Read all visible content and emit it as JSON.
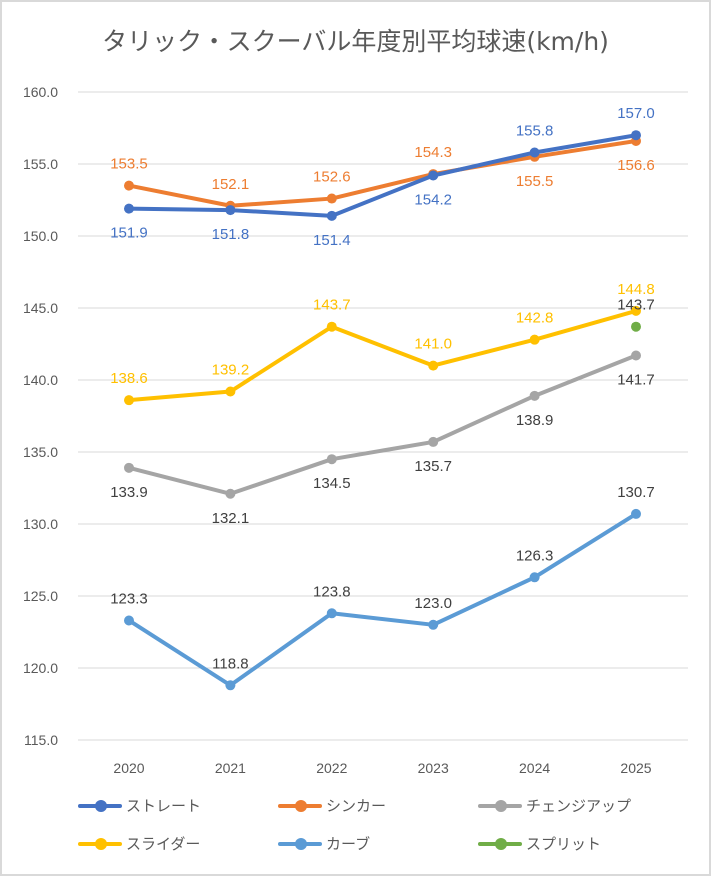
{
  "chart_data": {
    "type": "line",
    "title": "タリック・スクーバル年度別平均球速(km/h)",
    "categories": [
      "2020",
      "2021",
      "2022",
      "2023",
      "2024",
      "2025"
    ],
    "ylim": [
      115,
      160
    ],
    "yticks": [
      "115.0",
      "120.0",
      "125.0",
      "130.0",
      "135.0",
      "140.0",
      "145.0",
      "150.0",
      "155.0",
      "160.0"
    ],
    "grid": true,
    "legend_position": "bottom",
    "series": [
      {
        "name": "ストレート",
        "color": "#4472C4",
        "label_color": "#4472C4",
        "values": [
          151.9,
          151.8,
          151.4,
          154.2,
          155.8,
          157.0
        ],
        "labels": [
          "151.9",
          "151.8",
          "151.4",
          "154.2",
          "155.8",
          "157.0"
        ]
      },
      {
        "name": "シンカー",
        "color": "#ED7D31",
        "label_color": "#ED7D31",
        "values": [
          153.5,
          152.1,
          152.6,
          154.3,
          155.5,
          156.6
        ],
        "labels": [
          "153.5",
          "152.1",
          "152.6",
          "154.3",
          "155.5",
          "156.6"
        ]
      },
      {
        "name": "チェンジアップ",
        "color": "#A5A5A5",
        "label_color": "#404040",
        "values": [
          133.9,
          132.1,
          134.5,
          135.7,
          138.9,
          141.7
        ],
        "labels": [
          "133.9",
          "132.1",
          "134.5",
          "135.7",
          "138.9",
          "141.7"
        ]
      },
      {
        "name": "スライダー",
        "color": "#FFC000",
        "label_color": "#FFC000",
        "values": [
          138.6,
          139.2,
          143.7,
          141.0,
          142.8,
          144.8
        ],
        "labels": [
          "138.6",
          "139.2",
          "143.7",
          "141.0",
          "142.8",
          "144.8"
        ]
      },
      {
        "name": "カーブ",
        "color": "#5B9BD5",
        "label_color": "#404040",
        "values": [
          123.3,
          118.8,
          123.8,
          123.0,
          126.3,
          130.7
        ],
        "labels": [
          "123.3",
          "118.8",
          "123.8",
          "123.0",
          "126.3",
          "130.7"
        ]
      },
      {
        "name": "スプリット",
        "color": "#70AD47",
        "label_color": "#404040",
        "values": [
          null,
          null,
          null,
          null,
          null,
          143.7
        ],
        "labels": [
          null,
          null,
          null,
          null,
          null,
          "143.7"
        ]
      }
    ]
  }
}
